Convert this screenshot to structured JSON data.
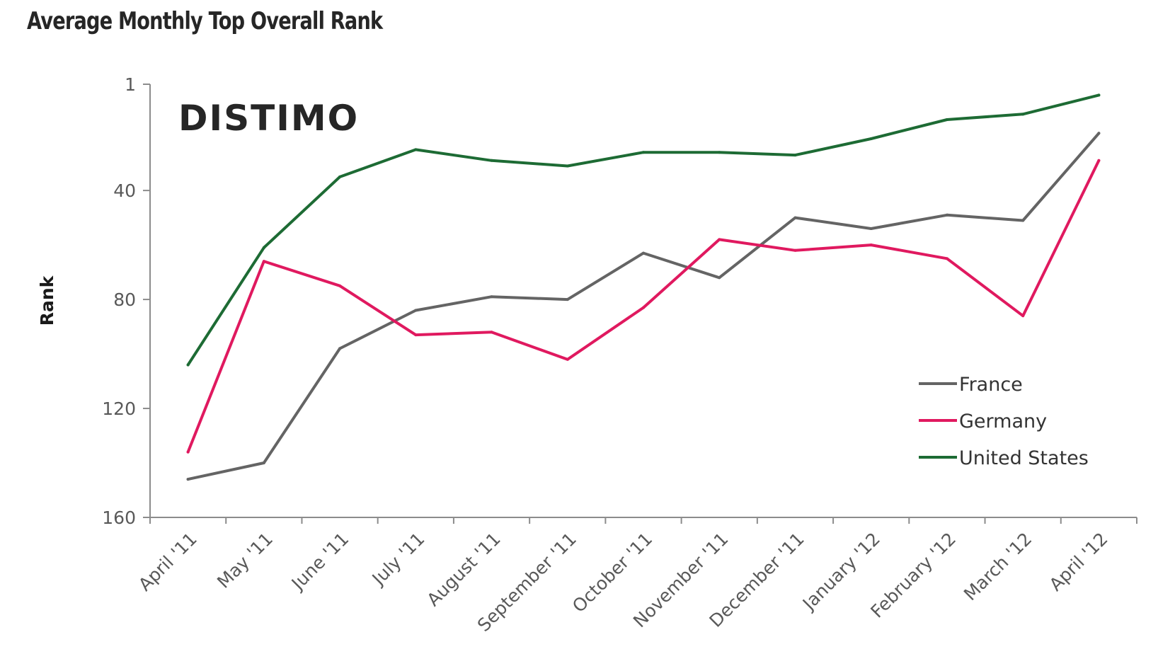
{
  "chart_data": {
    "type": "line",
    "title": "Average Monthly Top Overall Rank",
    "xlabel": "",
    "ylabel": "Rank",
    "watermark": "DISTIMO",
    "categories": [
      "April '11",
      "May '11",
      "June '11",
      "July '11",
      "August '11",
      "September '11",
      "October '11",
      "November '11",
      "December '11",
      "January '12",
      "February '12",
      "March '12",
      "April '12"
    ],
    "y_ticks": [
      1,
      40,
      80,
      120,
      160
    ],
    "ylim": [
      160,
      1
    ],
    "y_inverted": true,
    "grid": false,
    "legend_position": "bottom-right",
    "series": [
      {
        "name": "France",
        "color": "#646464",
        "values": [
          146,
          140,
          98,
          84,
          79,
          80,
          63,
          72,
          50,
          54,
          49,
          51,
          19
        ]
      },
      {
        "name": "Germany",
        "color": "#e0195f",
        "values": [
          136,
          66,
          75,
          93,
          92,
          102,
          83,
          58,
          62,
          60,
          65,
          86,
          29
        ]
      },
      {
        "name": "United States",
        "color": "#1d6b34",
        "values": [
          104,
          61,
          35,
          25,
          29,
          31,
          26,
          26,
          27,
          21,
          14,
          12,
          5
        ]
      }
    ]
  }
}
